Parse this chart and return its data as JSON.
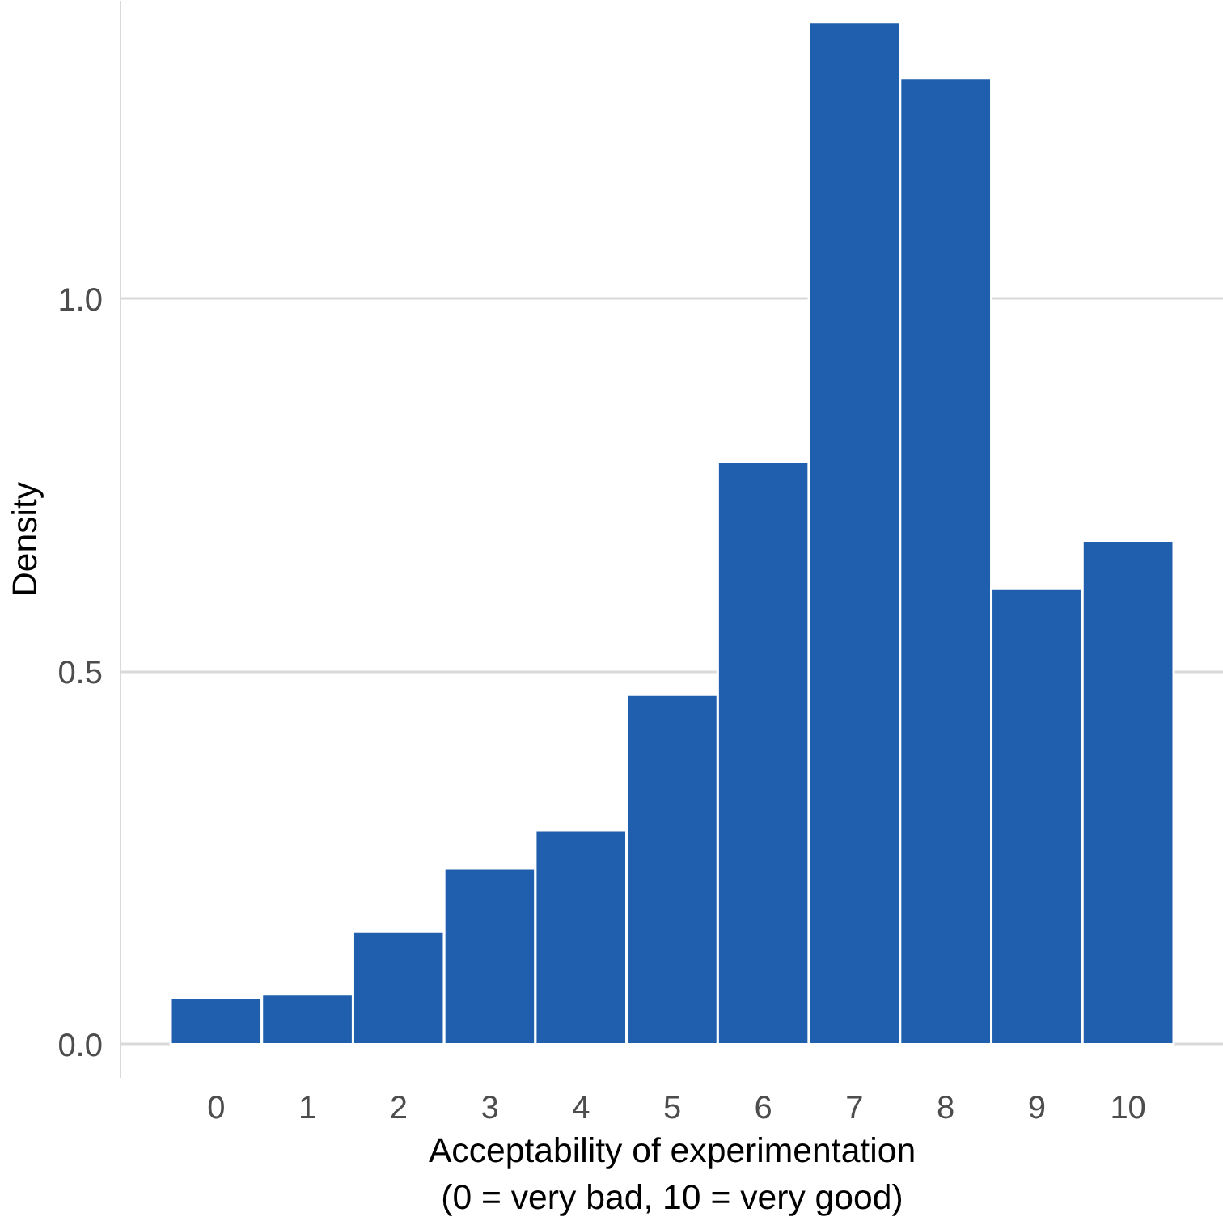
{
  "chart_data": {
    "type": "histogram",
    "xlabel": "Acceptability of experimentation\n(0 = very bad, 10 = very good)",
    "ylabel": "Density",
    "bins": [
      -0.5,
      0.5,
      1.5,
      2.5,
      3.5,
      4.5,
      5.5,
      6.5,
      7.5,
      8.5,
      9.5,
      10.5
    ],
    "values": [
      0.062,
      0.067,
      0.151,
      0.236,
      0.287,
      0.469,
      0.782,
      1.371,
      1.296,
      0.611,
      0.676
    ],
    "color": "#1f5fad",
    "xlim": [
      -1.05,
      11.05
    ],
    "ylim": [
      -0.045,
      1.4
    ],
    "xticks": [
      0,
      1,
      2,
      3,
      4,
      5,
      6,
      7,
      8,
      9,
      10
    ],
    "yticks": [
      {
        "value": 0,
        "label": "0.0"
      },
      {
        "value": 0.5,
        "label": "0.5"
      },
      {
        "value": 1,
        "label": "1.0"
      }
    ],
    "grid": "y"
  }
}
